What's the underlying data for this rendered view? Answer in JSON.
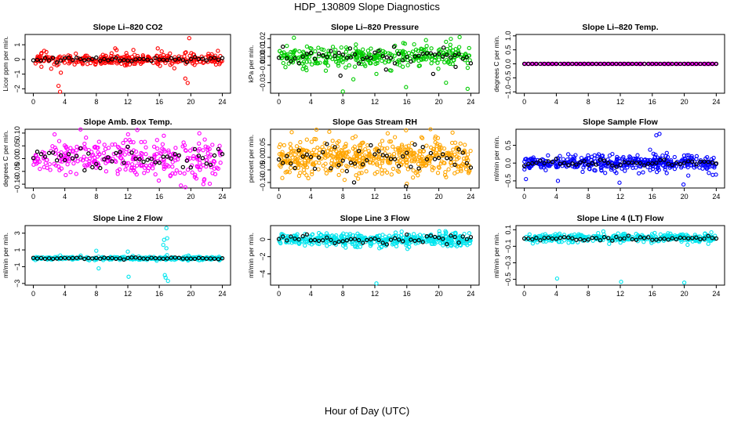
{
  "page": {
    "title": "HDP_130809  Slope Diagnostics",
    "xlabel": "Hour of Day (UTC)"
  },
  "chart_data": [
    {
      "type": "scatter",
      "title": "Slope Li–820 CO2",
      "ylabel": "Licor ppm per min.",
      "xlim": [
        0,
        24
      ],
      "xticks": [
        "0",
        "4",
        "8",
        "12",
        "16",
        "20",
        "24"
      ],
      "ylim": [
        -2.3,
        1.7
      ],
      "yticks": [
        {
          "v": -2,
          "label": "−2"
        },
        {
          "v": -1,
          "label": "−1"
        },
        {
          "v": 0,
          "label": "0"
        },
        {
          "v": 1,
          "label": "1"
        }
      ],
      "colors": {
        "main": "#ff0000",
        "avg": "#000000"
      },
      "series": [
        {
          "name": "samples",
          "x": [
            3.0,
            3.2,
            3.4,
            3.5,
            10.4,
            15.8,
            16.3,
            19.3,
            19.6,
            19.8,
            17.9,
            5.4
          ],
          "y": [
            -0.4,
            -1.8,
            -2.2,
            -0.9,
            0.75,
            0.75,
            0.55,
            -1.3,
            -1.6,
            1.45,
            -0.6,
            0.4
          ]
        },
        {
          "name": "hourly",
          "x": [],
          "y": []
        }
      ],
      "synthetic": {
        "center": 0.0,
        "spread": 0.22,
        "avg_spread": 0.09,
        "count": 340,
        "seed": 11
      }
    },
    {
      "type": "scatter",
      "title": "Slope Li–820 Pressure",
      "ylabel": "kPa per min.",
      "xlim": [
        0,
        24
      ],
      "xticks": [
        "0",
        "4",
        "8",
        "12",
        "16",
        "20",
        "24"
      ],
      "ylim": [
        -0.042,
        0.025
      ],
      "yticks": [
        {
          "v": -0.03,
          "label": "−0.03"
        },
        {
          "v": -0.01,
          "label": "−0.01"
        },
        {
          "v": 0.0,
          "label": "0.00"
        },
        {
          "v": 0.01,
          "label": "0.01"
        },
        {
          "v": 0.02,
          "label": "0.02"
        }
      ],
      "colors": {
        "main": "#00cc00",
        "avg": "#000000"
      },
      "series": [
        {
          "name": "samples",
          "x": [
            8.0,
            15.9,
            20.9,
            23.6,
            21.5,
            22.6,
            1.0,
            12.2
          ],
          "y": [
            -0.04,
            -0.035,
            -0.03,
            -0.037,
            0.02,
            0.022,
            0.012,
            -0.02
          ]
        },
        {
          "name": "hourly",
          "x": [
            7.7,
            13.4,
            19.3,
            22.1,
            8.9,
            14.4,
            20.6
          ],
          "y": [
            -0.022,
            -0.015,
            -0.02,
            -0.012,
            0.009,
            0.011,
            0.01
          ]
        }
      ],
      "synthetic": {
        "center": 0.0,
        "spread": 0.007,
        "avg_spread": 0.004,
        "count": 340,
        "seed": 23
      }
    },
    {
      "type": "scatter",
      "title": "Slope Li–820 Temp.",
      "ylabel": "degrees C per min.",
      "xlim": [
        0,
        24
      ],
      "xticks": [
        "0",
        "4",
        "8",
        "12",
        "16",
        "20",
        "24"
      ],
      "ylim": [
        -1.05,
        1.05
      ],
      "yticks": [
        {
          "v": -1.0,
          "label": "−1.0"
        },
        {
          "v": -0.5,
          "label": "−0.5"
        },
        {
          "v": 0.0,
          "label": "0.0"
        },
        {
          "v": 0.5,
          "label": "0.5"
        },
        {
          "v": 1.0,
          "label": "1.0"
        }
      ],
      "colors": {
        "main": "#ff00ff",
        "avg": "#000000"
      },
      "series": [
        {
          "name": "samples",
          "x": [],
          "y": []
        },
        {
          "name": "hourly",
          "x": [],
          "y": []
        }
      ],
      "synthetic": {
        "center": 0.0,
        "spread": 0.0,
        "avg_spread": 0.0,
        "count": 240,
        "seed": 31
      }
    },
    {
      "type": "scatter",
      "title": "Slope Amb. Box Temp.",
      "ylabel": "degrees C per min.",
      "xlim": [
        0,
        24
      ],
      "xticks": [
        "0",
        "4",
        "8",
        "12",
        "16",
        "20",
        "24"
      ],
      "ylim": [
        -0.115,
        0.115
      ],
      "yticks": [
        {
          "v": -0.1,
          "label": "−0.10"
        },
        {
          "v": -0.05,
          "label": "−0.05"
        },
        {
          "v": 0.0,
          "label": "0.00"
        },
        {
          "v": 0.05,
          "label": "0.05"
        },
        {
          "v": 0.1,
          "label": "0.10"
        }
      ],
      "colors": {
        "main": "#ff00ff",
        "avg": "#000000"
      },
      "series": [
        {
          "name": "samples",
          "x": [
            19.3,
            13.2,
            2.7,
            22.4
          ],
          "y": [
            -0.112,
            0.112,
            0.095,
            -0.098
          ]
        },
        {
          "name": "hourly",
          "x": [],
          "y": []
        }
      ],
      "synthetic": {
        "center": 0.0,
        "spread": 0.045,
        "avg_spread": 0.02,
        "count": 320,
        "seed": 47
      }
    },
    {
      "type": "scatter",
      "title": "Slope Gas Stream RH",
      "ylabel": "percent per min.",
      "xlim": [
        0,
        24
      ],
      "xticks": [
        "0",
        "4",
        "8",
        "12",
        "16",
        "20",
        "24"
      ],
      "ylim": [
        -0.122,
        0.112
      ],
      "yticks": [
        {
          "v": -0.1,
          "label": "−0.10"
        },
        {
          "v": -0.05,
          "label": "−0.05"
        },
        {
          "v": 0.0,
          "label": "0.00"
        },
        {
          "v": 0.05,
          "label": "0.05"
        }
      ],
      "colors": {
        "main": "#ffa500",
        "avg": "#000000"
      },
      "series": [
        {
          "name": "samples",
          "x": [
            1.6,
            6.3,
            15.9
          ],
          "y": [
            0.1,
            0.102,
            0.108
          ]
        },
        {
          "name": "hourly",
          "x": [
            15.9,
            9.4
          ],
          "y": [
            -0.115,
            -0.1
          ]
        }
      ],
      "synthetic": {
        "center": 0.0,
        "spread": 0.042,
        "avg_spread": 0.03,
        "count": 520,
        "seed": 59
      }
    },
    {
      "type": "scatter",
      "title": "Slope Sample Flow",
      "ylabel": "ml/min per min.",
      "xlim": [
        0,
        24
      ],
      "xticks": [
        "0",
        "4",
        "8",
        "12",
        "16",
        "20",
        "24"
      ],
      "ylim": [
        -0.7,
        0.95
      ],
      "yticks": [
        {
          "v": -0.5,
          "label": "−0.5"
        },
        {
          "v": 0.0,
          "label": "0.0"
        },
        {
          "v": 0.5,
          "label": "0.5"
        }
      ],
      "colors": {
        "main": "#0000ff",
        "avg": "#000000"
      },
      "series": [
        {
          "name": "samples",
          "x": [
            16.5,
            16.9,
            19.9,
            4.2,
            11.9,
            20.5,
            0.2
          ],
          "y": [
            0.78,
            0.82,
            -0.6,
            -0.5,
            -0.55,
            -0.35,
            -0.45
          ]
        },
        {
          "name": "hourly",
          "x": [],
          "y": []
        }
      ],
      "synthetic": {
        "center": 0.0,
        "spread": 0.12,
        "avg_spread": 0.05,
        "count": 420,
        "seed": 71
      }
    },
    {
      "type": "scatter",
      "title": "Slope Line 2 Flow",
      "ylabel": "ml/min per min.",
      "xlim": [
        0,
        24
      ],
      "xticks": [
        "0",
        "4",
        "8",
        "12",
        "16",
        "20",
        "24"
      ],
      "ylim": [
        -3.2,
        3.9
      ],
      "yticks": [
        {
          "v": -3,
          "label": "−3"
        },
        {
          "v": -1,
          "label": "−1"
        },
        {
          "v": 1,
          "label": "1"
        },
        {
          "v": 3,
          "label": "3"
        }
      ],
      "colors": {
        "main": "#00e5ee",
        "avg": "#000000"
      },
      "series": [
        {
          "name": "samples",
          "x": [
            16.9,
            17.0,
            16.6,
            16.8,
            17.1,
            16.5,
            12.1,
            8.3,
            16.9,
            16.7,
            8.0,
            12.0
          ],
          "y": [
            3.6,
            2.4,
            2.2,
            -2.3,
            -2.7,
            1.6,
            -2.2,
            -1.2,
            1.2,
            -2.0,
            0.9,
            0.8
          ]
        },
        {
          "name": "hourly",
          "x": [],
          "y": []
        }
      ],
      "synthetic": {
        "center": 0.0,
        "spread": 0.12,
        "avg_spread": 0.05,
        "count": 320,
        "seed": 83
      }
    },
    {
      "type": "scatter",
      "title": "Slope Line 3 Flow",
      "ylabel": "ml/min per min.",
      "xlim": [
        0,
        24
      ],
      "xticks": [
        "0",
        "4",
        "8",
        "12",
        "16",
        "20",
        "24"
      ],
      "ylim": [
        -5.3,
        1.6
      ],
      "yticks": [
        {
          "v": -4,
          "label": "−4"
        },
        {
          "v": -2,
          "label": "−2"
        },
        {
          "v": 0,
          "label": "0"
        }
      ],
      "colors": {
        "main": "#00e5ee",
        "avg": "#000000"
      },
      "series": [
        {
          "name": "samples",
          "x": [
            12.2
          ],
          "y": [
            -5.1
          ]
        },
        {
          "name": "hourly",
          "x": [],
          "y": []
        }
      ],
      "synthetic": {
        "center": 0.0,
        "spread": 0.45,
        "avg_spread": 0.28,
        "count": 460,
        "seed": 97
      }
    },
    {
      "type": "scatter",
      "title": "Slope Line 4 (LT) Flow",
      "ylabel": "ml/min per min.",
      "xlim": [
        0,
        24
      ],
      "xticks": [
        "0",
        "4",
        "8",
        "12",
        "16",
        "20",
        "24"
      ],
      "ylim": [
        -0.57,
        0.15
      ],
      "yticks": [
        {
          "v": -0.5,
          "label": "−0.5"
        },
        {
          "v": -0.3,
          "label": "−0.3"
        },
        {
          "v": -0.1,
          "label": "−0.1"
        },
        {
          "v": 0.1,
          "label": "0.1"
        }
      ],
      "colors": {
        "main": "#00e5ee",
        "avg": "#000000"
      },
      "series": [
        {
          "name": "samples",
          "x": [
            4.1,
            12.1,
            20.0
          ],
          "y": [
            -0.49,
            -0.53,
            -0.54
          ]
        },
        {
          "name": "hourly",
          "x": [],
          "y": []
        }
      ],
      "synthetic": {
        "center": 0.0,
        "spread": 0.03,
        "avg_spread": 0.015,
        "count": 360,
        "seed": 109
      }
    }
  ]
}
